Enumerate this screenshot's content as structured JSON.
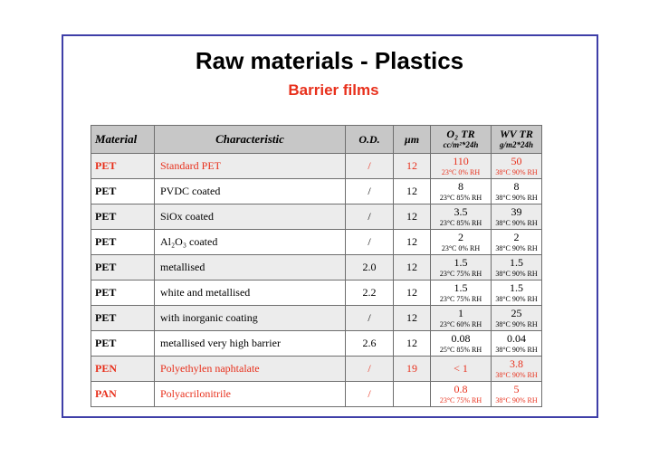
{
  "slide": {
    "title": "Raw materials - Plastics",
    "subtitle": "Barrier films"
  },
  "colors": {
    "accent": "#e8301c",
    "frame": "#3f3fa8",
    "header_bg": "#c7c7c7"
  },
  "table": {
    "headers": {
      "material": "Material",
      "characteristic": "Characteristic",
      "od": "O.D.",
      "um": "µm",
      "o2_top": "O₂ TR",
      "o2_bottom": "cc/m²*24h",
      "wv_top": "WV TR",
      "wv_bottom": "g/m2*24h"
    },
    "rows": [
      {
        "material": "PET",
        "characteristic": "Standard PET",
        "od": "/",
        "um": "12",
        "o2": "110",
        "o2_cond": "23°C 0% RH",
        "wv": "50",
        "wv_cond": "38°C 90% RH",
        "highlight": true
      },
      {
        "material": "PET",
        "characteristic": "PVDC coated",
        "od": "/",
        "um": "12",
        "o2": "8",
        "o2_cond": "23°C 85% RH",
        "wv": "8",
        "wv_cond": "38°C 90% RH",
        "highlight": false
      },
      {
        "material": "PET",
        "characteristic": "SiOx coated",
        "od": "/",
        "um": "12",
        "o2": "3.5",
        "o2_cond": "23°C 85% RH",
        "wv": "39",
        "wv_cond": "38°C 90% RH",
        "highlight": false
      },
      {
        "material": "PET",
        "characteristic": "Al₂O₃ coated",
        "od": "/",
        "um": "12",
        "o2": "2",
        "o2_cond": "23°C 0% RH",
        "wv": "2",
        "wv_cond": "38°C 90% RH",
        "highlight": false
      },
      {
        "material": "PET",
        "characteristic": "metallised",
        "od": "2.0",
        "um": "12",
        "o2": "1.5",
        "o2_cond": "23°C 75% RH",
        "wv": "1.5",
        "wv_cond": "38°C 90% RH",
        "highlight": false
      },
      {
        "material": "PET",
        "characteristic": "white and metallised",
        "od": "2.2",
        "um": "12",
        "o2": "1.5",
        "o2_cond": "23°C 75% RH",
        "wv": "1.5",
        "wv_cond": "38°C 90% RH",
        "highlight": false
      },
      {
        "material": "PET",
        "characteristic": "with inorganic coating",
        "od": "/",
        "um": "12",
        "o2": "1",
        "o2_cond": "23°C 60% RH",
        "wv": "25",
        "wv_cond": "38°C 90% RH",
        "highlight": false
      },
      {
        "material": "PET",
        "characteristic": "metallised very high barrier",
        "od": "2.6",
        "um": "12",
        "o2": "0.08",
        "o2_cond": "25°C 85% RH",
        "wv": "0.04",
        "wv_cond": "38°C 90% RH",
        "highlight": false
      },
      {
        "material": "PEN",
        "characteristic": "Polyethylen naphtalate",
        "od": "/",
        "um": "19",
        "o2": "< 1",
        "o2_cond": "",
        "wv": "3.8",
        "wv_cond": "38°C 90% RH",
        "highlight": true
      },
      {
        "material": "PAN",
        "characteristic": "Polyacrilonitrile",
        "od": "/",
        "um": "",
        "o2": "0.8",
        "o2_cond": "23°C 75% RH",
        "wv": "5",
        "wv_cond": "38°C 90% RH",
        "highlight": true
      }
    ]
  }
}
